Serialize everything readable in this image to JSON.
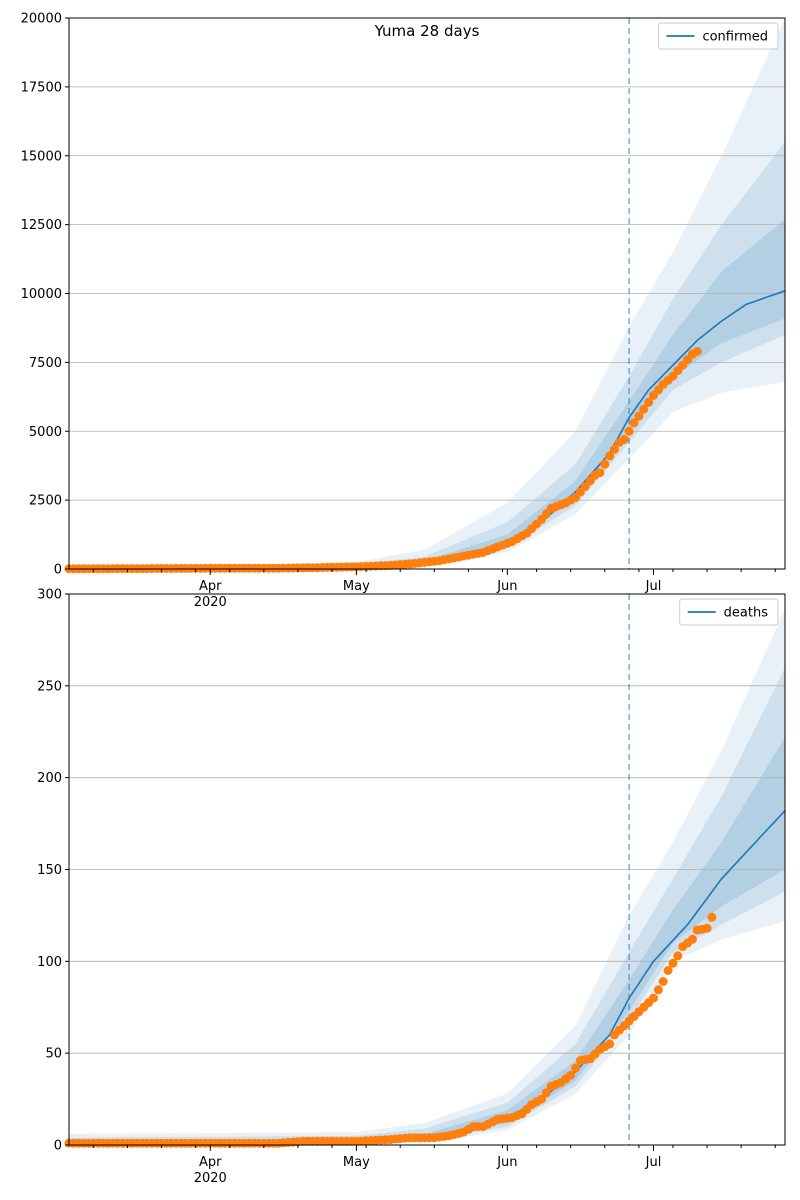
{
  "chart_data": [
    {
      "type": "line",
      "title": "Yuma 28 days",
      "xlabel": "",
      "ylabel": "",
      "x_range": [
        "2020-03-03",
        "2020-07-28"
      ],
      "ylim": [
        0,
        20000
      ],
      "y_ticks": [
        0,
        2500,
        5000,
        7500,
        10000,
        12500,
        15000,
        17500,
        20000
      ],
      "x_tick_labels": [
        {
          "date": "2020-04-01",
          "label": "Apr",
          "sublabel": "2020"
        },
        {
          "date": "2020-05-01",
          "label": "May",
          "sublabel": ""
        },
        {
          "date": "2020-06-01",
          "label": "Jun",
          "sublabel": ""
        },
        {
          "date": "2020-07-01",
          "label": "Jul",
          "sublabel": ""
        }
      ],
      "grid": "horizontal",
      "legend_position": "top-right",
      "forecast_start": "2020-06-26",
      "series": [
        {
          "name": "confirmed",
          "kind": "forecast-median",
          "color": "#1f77b4",
          "points": [
            [
              "2020-03-03",
              5
            ],
            [
              "2020-04-01",
              20
            ],
            [
              "2020-05-01",
              70
            ],
            [
              "2020-05-15",
              200
            ],
            [
              "2020-05-24",
              400
            ],
            [
              "2020-06-01",
              1000
            ],
            [
              "2020-06-08",
              1700
            ],
            [
              "2020-06-15",
              2800
            ],
            [
              "2020-06-22",
              4200
            ],
            [
              "2020-06-26",
              5500
            ],
            [
              "2020-06-30",
              6500
            ],
            [
              "2020-07-05",
              7400
            ],
            [
              "2020-07-10",
              8300
            ],
            [
              "2020-07-15",
              9000
            ],
            [
              "2020-07-20",
              9600
            ],
            [
              "2020-07-28",
              10100
            ]
          ]
        },
        {
          "name": "",
          "kind": "observed",
          "color": "#ff7f0e",
          "points": [
            [
              "2020-03-03",
              10
            ],
            [
              "2020-03-18",
              15
            ],
            [
              "2020-04-01",
              25
            ],
            [
              "2020-04-15",
              30
            ],
            [
              "2020-04-22",
              45
            ],
            [
              "2020-05-01",
              80
            ],
            [
              "2020-05-08",
              130
            ],
            [
              "2020-05-13",
              200
            ],
            [
              "2020-05-18",
              300
            ],
            [
              "2020-05-21",
              400
            ],
            [
              "2020-05-24",
              500
            ],
            [
              "2020-05-27",
              600
            ],
            [
              "2020-05-30",
              800
            ],
            [
              "2020-06-02",
              1000
            ],
            [
              "2020-06-05",
              1300
            ],
            [
              "2020-06-08",
              1800
            ],
            [
              "2020-06-10",
              2200
            ],
            [
              "2020-06-13",
              2400
            ],
            [
              "2020-06-15",
              2600
            ],
            [
              "2020-06-17",
              3000
            ],
            [
              "2020-06-19",
              3400
            ],
            [
              "2020-06-20",
              3500
            ],
            [
              "2020-06-22",
              4100
            ],
            [
              "2020-06-24",
              4600
            ],
            [
              "2020-06-25",
              4700
            ],
            [
              "2020-06-27",
              5300
            ],
            [
              "2020-06-29",
              5800
            ],
            [
              "2020-07-01",
              6300
            ],
            [
              "2020-07-03",
              6700
            ],
            [
              "2020-07-05",
              7000
            ],
            [
              "2020-07-07",
              7400
            ],
            [
              "2020-07-09",
              7800
            ],
            [
              "2020-07-10",
              7900
            ]
          ]
        }
      ],
      "bands": [
        {
          "level": "outer",
          "lower": [
            [
              "2020-03-03",
              0
            ],
            [
              "2020-05-15",
              100
            ],
            [
              "2020-06-01",
              600
            ],
            [
              "2020-06-15",
              2000
            ],
            [
              "2020-06-26",
              4000
            ],
            [
              "2020-07-05",
              5700
            ],
            [
              "2020-07-15",
              6400
            ],
            [
              "2020-07-28",
              6800
            ]
          ],
          "upper": [
            [
              "2020-03-03",
              40
            ],
            [
              "2020-05-01",
              250
            ],
            [
              "2020-05-15",
              700
            ],
            [
              "2020-06-01",
              2400
            ],
            [
              "2020-06-15",
              5000
            ],
            [
              "2020-06-26",
              8800
            ],
            [
              "2020-07-05",
              11500
            ],
            [
              "2020-07-15",
              15000
            ],
            [
              "2020-07-28",
              20000
            ]
          ]
        },
        {
          "level": "middle",
          "lower": [
            [
              "2020-03-03",
              2
            ],
            [
              "2020-05-15",
              140
            ],
            [
              "2020-06-01",
              750
            ],
            [
              "2020-06-15",
              2300
            ],
            [
              "2020-06-26",
              4600
            ],
            [
              "2020-07-05",
              6500
            ],
            [
              "2020-07-15",
              7500
            ],
            [
              "2020-07-28",
              8500
            ]
          ],
          "upper": [
            [
              "2020-03-03",
              25
            ],
            [
              "2020-05-01",
              160
            ],
            [
              "2020-05-15",
              450
            ],
            [
              "2020-06-01",
              1700
            ],
            [
              "2020-06-15",
              3800
            ],
            [
              "2020-06-26",
              7000
            ],
            [
              "2020-07-05",
              9800
            ],
            [
              "2020-07-15",
              12500
            ],
            [
              "2020-07-28",
              15500
            ]
          ]
        },
        {
          "level": "inner",
          "lower": [
            [
              "2020-03-03",
              3
            ],
            [
              "2020-05-15",
              170
            ],
            [
              "2020-06-01",
              880
            ],
            [
              "2020-06-15",
              2550
            ],
            [
              "2020-06-26",
              5100
            ],
            [
              "2020-07-05",
              6950
            ],
            [
              "2020-07-15",
              8200
            ],
            [
              "2020-07-28",
              9100
            ]
          ],
          "upper": [
            [
              "2020-03-03",
              15
            ],
            [
              "2020-05-01",
              110
            ],
            [
              "2020-05-15",
              300
            ],
            [
              "2020-06-01",
              1250
            ],
            [
              "2020-06-15",
              3200
            ],
            [
              "2020-06-26",
              6100
            ],
            [
              "2020-07-05",
              8500
            ],
            [
              "2020-07-15",
              10800
            ],
            [
              "2020-07-28",
              12700
            ]
          ]
        }
      ]
    },
    {
      "type": "line",
      "title": "",
      "xlabel": "",
      "ylabel": "",
      "x_range": [
        "2020-03-03",
        "2020-07-28"
      ],
      "ylim": [
        0,
        300
      ],
      "y_ticks": [
        0,
        50,
        100,
        150,
        200,
        250,
        300
      ],
      "x_tick_labels": [
        {
          "date": "2020-04-01",
          "label": "Apr",
          "sublabel": "2020"
        },
        {
          "date": "2020-05-01",
          "label": "May",
          "sublabel": ""
        },
        {
          "date": "2020-06-01",
          "label": "Jun",
          "sublabel": ""
        },
        {
          "date": "2020-07-01",
          "label": "Jul",
          "sublabel": ""
        }
      ],
      "grid": "horizontal",
      "legend_position": "top-right",
      "forecast_start": "2020-06-26",
      "series": [
        {
          "name": "deaths",
          "kind": "forecast-median",
          "color": "#1f77b4",
          "points": [
            [
              "2020-03-03",
              1
            ],
            [
              "2020-05-01",
              2
            ],
            [
              "2020-05-15",
              4
            ],
            [
              "2020-05-25",
              8
            ],
            [
              "2020-06-01",
              15
            ],
            [
              "2020-06-08",
              25
            ],
            [
              "2020-06-15",
              40
            ],
            [
              "2020-06-22",
              60
            ],
            [
              "2020-06-26",
              80
            ],
            [
              "2020-07-01",
              100
            ],
            [
              "2020-07-08",
              120
            ],
            [
              "2020-07-15",
              145
            ],
            [
              "2020-07-22",
              165
            ],
            [
              "2020-07-28",
              182
            ]
          ]
        },
        {
          "name": "",
          "kind": "observed",
          "color": "#ff7f0e",
          "points": [
            [
              "2020-03-03",
              1
            ],
            [
              "2020-04-15",
              1
            ],
            [
              "2020-04-20",
              2
            ],
            [
              "2020-05-01",
              2
            ],
            [
              "2020-05-08",
              3
            ],
            [
              "2020-05-12",
              4
            ],
            [
              "2020-05-17",
              4
            ],
            [
              "2020-05-20",
              5
            ],
            [
              "2020-05-23",
              7
            ],
            [
              "2020-05-25",
              10
            ],
            [
              "2020-05-27",
              10
            ],
            [
              "2020-05-30",
              14
            ],
            [
              "2020-06-02",
              15
            ],
            [
              "2020-06-04",
              17
            ],
            [
              "2020-06-06",
              22
            ],
            [
              "2020-06-08",
              25
            ],
            [
              "2020-06-10",
              32
            ],
            [
              "2020-06-12",
              34
            ],
            [
              "2020-06-14",
              38
            ],
            [
              "2020-06-16",
              46
            ],
            [
              "2020-06-18",
              47
            ],
            [
              "2020-06-20",
              52
            ],
            [
              "2020-06-22",
              55
            ],
            [
              "2020-06-23",
              60
            ],
            [
              "2020-06-25",
              65
            ],
            [
              "2020-06-27",
              70
            ],
            [
              "2020-06-29",
              75
            ],
            [
              "2020-07-01",
              80
            ],
            [
              "2020-07-03",
              89
            ],
            [
              "2020-07-04",
              95
            ],
            [
              "2020-07-06",
              103
            ],
            [
              "2020-07-07",
              108
            ],
            [
              "2020-07-09",
              112
            ],
            [
              "2020-07-10",
              117
            ],
            [
              "2020-07-12",
              118
            ],
            [
              "2020-07-13",
              124
            ]
          ]
        }
      ],
      "bands": [
        {
          "level": "outer",
          "lower": [
            [
              "2020-03-03",
              0
            ],
            [
              "2020-05-15",
              1
            ],
            [
              "2020-06-01",
              8
            ],
            [
              "2020-06-15",
              28
            ],
            [
              "2020-06-26",
              60
            ],
            [
              "2020-07-05",
              100
            ],
            [
              "2020-07-15",
              112
            ],
            [
              "2020-07-28",
              122
            ]
          ],
          "upper": [
            [
              "2020-03-03",
              6
            ],
            [
              "2020-05-01",
              7
            ],
            [
              "2020-05-15",
              12
            ],
            [
              "2020-06-01",
              28
            ],
            [
              "2020-06-15",
              65
            ],
            [
              "2020-06-26",
              125
            ],
            [
              "2020-07-05",
              165
            ],
            [
              "2020-07-15",
              215
            ],
            [
              "2020-07-28",
              292
            ]
          ]
        },
        {
          "level": "middle",
          "lower": [
            [
              "2020-03-03",
              0
            ],
            [
              "2020-05-15",
              2
            ],
            [
              "2020-06-01",
              10
            ],
            [
              "2020-06-15",
              32
            ],
            [
              "2020-06-26",
              68
            ],
            [
              "2020-07-05",
              105
            ],
            [
              "2020-07-15",
              120
            ],
            [
              "2020-07-28",
              138
            ]
          ],
          "upper": [
            [
              "2020-03-03",
              4
            ],
            [
              "2020-05-01",
              5
            ],
            [
              "2020-05-15",
              9
            ],
            [
              "2020-06-01",
              23
            ],
            [
              "2020-06-15",
              55
            ],
            [
              "2020-06-26",
              105
            ],
            [
              "2020-07-05",
              145
            ],
            [
              "2020-07-15",
              190
            ],
            [
              "2020-07-28",
              260
            ]
          ]
        },
        {
          "level": "inner",
          "lower": [
            [
              "2020-03-03",
              0
            ],
            [
              "2020-05-15",
              3
            ],
            [
              "2020-06-01",
              12
            ],
            [
              "2020-06-15",
              35
            ],
            [
              "2020-06-26",
              73
            ],
            [
              "2020-07-05",
              110
            ],
            [
              "2020-07-15",
              130
            ],
            [
              "2020-07-28",
              150
            ]
          ],
          "upper": [
            [
              "2020-03-03",
              2
            ],
            [
              "2020-05-01",
              3
            ],
            [
              "2020-05-15",
              6
            ],
            [
              "2020-06-01",
              19
            ],
            [
              "2020-06-15",
              46
            ],
            [
              "2020-06-26",
              90
            ],
            [
              "2020-07-05",
              128
            ],
            [
              "2020-07-15",
              165
            ],
            [
              "2020-07-28",
              222
            ]
          ]
        }
      ]
    }
  ]
}
